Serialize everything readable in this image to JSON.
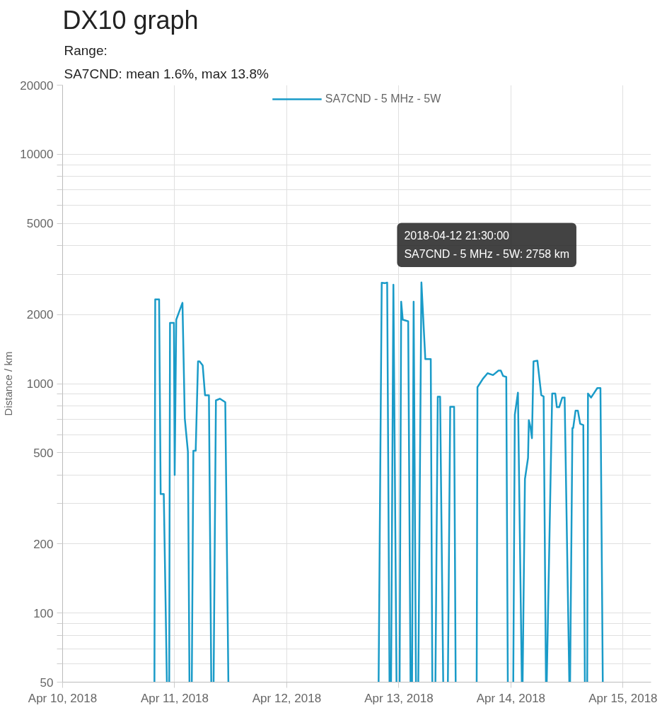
{
  "chart_data": {
    "type": "line",
    "title": "DX10 graph",
    "subtitle": "Range:\nSA7CND: mean 1.6%, max 13.8%",
    "ylabel": "Distance / km",
    "log": true,
    "grid": true,
    "legend": "top",
    "marker": "none",
    "line_style": "solid",
    "xlim": [
      "2018-04-10",
      "2018-04-15T06:00"
    ],
    "xticks": [
      {
        "value": "2018-04-10",
        "label": "Apr 10, 2018"
      },
      {
        "value": "2018-04-11",
        "label": "Apr 11, 2018"
      },
      {
        "value": "2018-04-12",
        "label": "Apr 12, 2018"
      },
      {
        "value": "2018-04-13",
        "label": "Apr 13, 2018"
      },
      {
        "value": "2018-04-14",
        "label": "Apr 14, 2018"
      },
      {
        "value": "2018-04-15",
        "label": "Apr 15, 2018"
      }
    ],
    "ylim": [
      50,
      20000
    ],
    "yticks": [
      50,
      {
        "value": 60,
        "label": null
      },
      {
        "value": 70,
        "label": null
      },
      {
        "value": 80,
        "label": null
      },
      {
        "value": 90,
        "label": null
      },
      100,
      200,
      {
        "value": 300,
        "label": null
      },
      {
        "value": 400,
        "label": null
      },
      500,
      {
        "value": 600,
        "label": null
      },
      {
        "value": 700,
        "label": null
      },
      {
        "value": 800,
        "label": null
      },
      {
        "value": 900,
        "label": null
      },
      1000,
      2000,
      {
        "value": 3000,
        "label": null
      },
      {
        "value": 4000,
        "label": null
      },
      5000,
      {
        "value": 6000,
        "label": null
      },
      {
        "value": 7000,
        "label": null
      },
      {
        "value": 8000,
        "label": null
      },
      {
        "value": 9000,
        "label": null
      },
      10000,
      20000
    ],
    "x": [
      "2018-04-10T19:40",
      "2018-04-10T19:50",
      "2018-04-10T20:40",
      "2018-04-10T21:00",
      "2018-04-10T21:40",
      "2018-04-10T22:20",
      "2018-04-10T22:35",
      "2018-04-10T22:50",
      "2018-04-10T23:00",
      "2018-04-10T23:50",
      "2018-04-11T00:00",
      "2018-04-11T00:20",
      "2018-04-11T01:40",
      "2018-04-11T02:10",
      "2018-04-11T02:50",
      "2018-04-11T03:10",
      "2018-04-11T03:25",
      "2018-04-11T03:40",
      "2018-04-11T04:00",
      "2018-04-11T04:30",
      "2018-04-11T05:00",
      "2018-04-11T05:20",
      "2018-04-11T06:00",
      "2018-04-11T06:30",
      "2018-04-11T07:20",
      "2018-04-11T07:50",
      "2018-04-11T08:05",
      "2018-04-11T08:20",
      "2018-04-11T08:50",
      "2018-04-11T09:40",
      "2018-04-11T10:50",
      "2018-04-11T11:30",
      "2018-04-12T00:00",
      "2018-04-12T19:40",
      "2018-04-12T20:20",
      "2018-04-12T21:00",
      "2018-04-12T21:30",
      "2018-04-12T22:00",
      "2018-04-12T22:10",
      "2018-04-12T22:20",
      "2018-04-12T22:50",
      "2018-04-12T23:30",
      "2018-04-12T23:50",
      "2018-04-13T00:10",
      "2018-04-13T00:30",
      "2018-04-13T00:50",
      "2018-04-13T02:00",
      "2018-04-13T02:30",
      "2018-04-13T02:40",
      "2018-04-13T02:50",
      "2018-04-13T03:10",
      "2018-04-13T03:40",
      "2018-04-13T03:55",
      "2018-04-13T04:10",
      "2018-04-13T04:50",
      "2018-04-13T05:40",
      "2018-04-13T06:50",
      "2018-04-13T07:10",
      "2018-04-13T07:30",
      "2018-04-13T07:50",
      "2018-04-13T08:20",
      "2018-04-13T08:50",
      "2018-04-13T09:30",
      "2018-04-13T10:00",
      "2018-04-13T10:30",
      "2018-04-13T11:00",
      "2018-04-13T11:50",
      "2018-04-13T12:10",
      "2018-04-13T14:00",
      "2018-04-13T16:40",
      "2018-04-13T16:50",
      "2018-04-13T17:20",
      "2018-04-13T18:00",
      "2018-04-13T19:00",
      "2018-04-13T20:10",
      "2018-04-13T21:20",
      "2018-04-13T21:50",
      "2018-04-13T22:20",
      "2018-04-13T23:00",
      "2018-04-13T23:20",
      "2018-04-14T00:00",
      "2018-04-14T00:30",
      "2018-04-14T00:50",
      "2018-04-14T01:30",
      "2018-04-14T02:20",
      "2018-04-14T02:25",
      "2018-04-14T02:30",
      "2018-04-14T03:00",
      "2018-04-14T03:40",
      "2018-04-14T03:50",
      "2018-04-14T04:10",
      "2018-04-14T04:30",
      "2018-04-14T04:50",
      "2018-04-14T05:40",
      "2018-04-14T06:30",
      "2018-04-14T07:00",
      "2018-04-14T07:30",
      "2018-04-14T07:35",
      "2018-04-14T07:40",
      "2018-04-14T08:50",
      "2018-04-14T09:30",
      "2018-04-14T09:50",
      "2018-04-14T10:20",
      "2018-04-14T11:00",
      "2018-04-14T11:30",
      "2018-04-14T12:30",
      "2018-04-14T12:35",
      "2018-04-14T12:40",
      "2018-04-14T13:10",
      "2018-04-14T13:20",
      "2018-04-14T13:50",
      "2018-04-14T14:20",
      "2018-04-14T14:50",
      "2018-04-14T15:30",
      "2018-04-14T15:50",
      "2018-04-14T16:05",
      "2018-04-14T16:20",
      "2018-04-14T16:30",
      "2018-04-14T17:10",
      "2018-04-14T18:30",
      "2018-04-14T19:10",
      "2018-04-14T19:40"
    ],
    "series": [
      {
        "name": "SA7CND - 5 MHz - 5W",
        "color": "#1a9bc8",
        "values": [
          50,
          2330,
          2330,
          330,
          330,
          50,
          null,
          50,
          1840,
          1840,
          400,
          1900,
          2250,
          705,
          506,
          50,
          null,
          50,
          510,
          510,
          1250,
          1250,
          1200,
          890,
          890,
          50,
          null,
          50,
          845,
          860,
          830,
          50,
          null,
          50,
          2750,
          2740,
          2758,
          50,
          null,
          50,
          2700,
          50,
          null,
          50,
          2275,
          1900,
          1870,
          50,
          null,
          50,
          2275,
          50,
          null,
          50,
          2760,
          1280,
          1280,
          50,
          null,
          50,
          877,
          877,
          50,
          null,
          50,
          793,
          793,
          50,
          null,
          50,
          965,
          1000,
          1050,
          1110,
          1090,
          1140,
          1140,
          1080,
          1070,
          50,
          null,
          50,
          733,
          914,
          50,
          null,
          50,
          384,
          475,
          693,
          650,
          578,
          1250,
          1260,
          890,
          880,
          50,
          null,
          50,
          906,
          906,
          790,
          790,
          870,
          870,
          50,
          null,
          50,
          641,
          641,
          762,
          762,
          668,
          660,
          50,
          null,
          50,
          906,
          870,
          957,
          957,
          50
        ]
      }
    ],
    "annotations": [
      {
        "text": "2018-04-12 21:30:00\nSA7CND - 5 MHz - 5W: 2758 km",
        "x": "2018-04-12T21:30",
        "y": 2758
      }
    ]
  }
}
